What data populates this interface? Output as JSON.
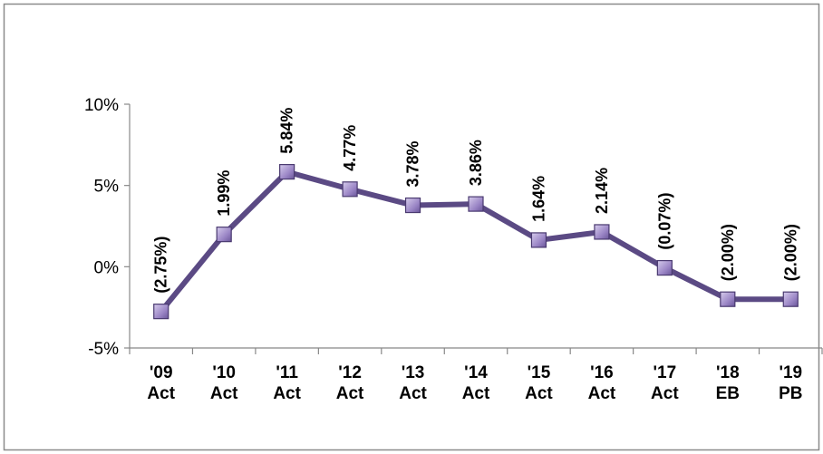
{
  "chart_data": {
    "type": "line",
    "categories": [
      [
        "'09",
        "Act"
      ],
      [
        "'10",
        "Act"
      ],
      [
        "'11",
        "Act"
      ],
      [
        "'12",
        "Act"
      ],
      [
        "'13",
        "Act"
      ],
      [
        "'14",
        "Act"
      ],
      [
        "'15",
        "Act"
      ],
      [
        "'16",
        "Act"
      ],
      [
        "'17",
        "Act"
      ],
      [
        "'18",
        "EB"
      ],
      [
        "'19",
        "PB"
      ]
    ],
    "series": [
      {
        "values": [
          -2.75,
          1.99,
          5.84,
          4.77,
          3.78,
          3.86,
          1.64,
          2.14,
          -0.07,
          -2.0,
          -2.0
        ],
        "data_labels": [
          "(2.75%)",
          "1.99%",
          "5.84%",
          "4.77%",
          "3.78%",
          "3.86%",
          "1.64%",
          "2.14%",
          "(0.07%)",
          "(2.00%)",
          "(2.00%)"
        ]
      }
    ],
    "y_ticks": [
      {
        "value": 10,
        "label": "10%"
      },
      {
        "value": 5,
        "label": "5%"
      },
      {
        "value": 0,
        "label": "0%"
      },
      {
        "value": -5,
        "label": "-5%"
      }
    ],
    "ylim": [
      -5,
      10
    ],
    "grid": false,
    "legend": "none",
    "colors": {
      "line": "#5b4a84",
      "marker_fill": "#a08cc8",
      "marker_stroke": "#4a3a70",
      "axis": "#888888",
      "frame": "#888888"
    }
  }
}
